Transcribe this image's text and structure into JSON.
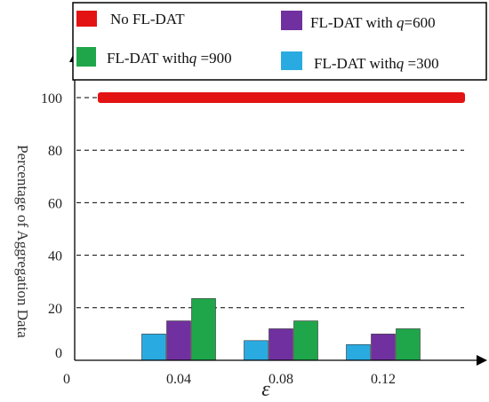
{
  "chart_data": {
    "type": "bar",
    "title": "",
    "xlabel": "ε",
    "ylabel": "Percentage of Aggregation Data",
    "origin_label": "0",
    "categories": [
      "0.04",
      "0.08",
      "0.12"
    ],
    "yticks": [
      0,
      20,
      40,
      60,
      80,
      100
    ],
    "ylim": [
      0,
      110
    ],
    "grid": "dashed horizontal",
    "legend_position": "top",
    "series": [
      {
        "name": "FL-DAT with q=300",
        "legend_prefix": "FL-DAT  with",
        "legend_var": "q",
        "legend_suffix": " =300",
        "color": "#29abe2",
        "values": [
          10,
          7.5,
          6
        ]
      },
      {
        "name": "FL-DAT with q=600",
        "legend_prefix": "FL-DAT  with ",
        "legend_var": "q",
        "legend_suffix": "=600",
        "color": "#7030a0",
        "values": [
          15,
          12,
          10
        ]
      },
      {
        "name": "FL-DAT with q=900",
        "legend_prefix": "FL-DAT  with",
        "legend_var": "q",
        "legend_suffix": " =900",
        "color": "#1fa64a",
        "values": [
          23.5,
          15,
          12
        ]
      }
    ],
    "baseline": {
      "name": "No FL-DAT",
      "value": 100,
      "color": "#e31313"
    }
  }
}
